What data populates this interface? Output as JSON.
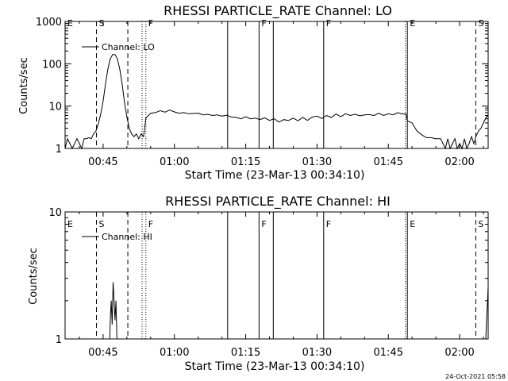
{
  "chart_data": [
    {
      "type": "line",
      "title": "RHESSI PARTICLE_RATE Channel: LO",
      "xlabel": "Start Time (23-Mar-13 00:34:10)",
      "ylabel": "Counts/sec",
      "yscale": "log",
      "xlim": [
        37.0,
        126.0
      ],
      "ylim": [
        1,
        1000
      ],
      "x_ticks": [
        {
          "v": 45,
          "label": "00:45"
        },
        {
          "v": 60,
          "label": "01:00"
        },
        {
          "v": 75,
          "label": "01:15"
        },
        {
          "v": 90,
          "label": "01:30"
        },
        {
          "v": 105,
          "label": "01:45"
        },
        {
          "v": 120,
          "label": "02:00"
        }
      ],
      "y_ticks": [
        {
          "v": 1,
          "label": "1"
        },
        {
          "v": 10,
          "label": "10"
        },
        {
          "v": 100,
          "label": "100"
        },
        {
          "v": 1000,
          "label": "1000"
        }
      ],
      "legend": {
        "label": "Channel: LO",
        "position": "top-left"
      },
      "markers": [
        {
          "x": 37.0,
          "style": "none",
          "label": "E"
        },
        {
          "x": 43.6,
          "style": "dashed",
          "label": "S"
        },
        {
          "x": 50.2,
          "style": "dashed",
          "label": ""
        },
        {
          "x": 53.2,
          "style": "dotted",
          "label": ""
        },
        {
          "x": 54.0,
          "style": "dotted",
          "label": "F"
        },
        {
          "x": 71.2,
          "style": "solid",
          "label": ""
        },
        {
          "x": 77.8,
          "style": "solid",
          "label": "F"
        },
        {
          "x": 80.8,
          "style": "solid",
          "label": ""
        },
        {
          "x": 91.4,
          "style": "solid",
          "label": "F"
        },
        {
          "x": 108.6,
          "style": "dotted",
          "label": ""
        },
        {
          "x": 109.0,
          "style": "solid",
          "label": "E"
        },
        {
          "x": 121.0,
          "style": "none",
          "label": ""
        },
        {
          "x": 123.4,
          "style": "dashed",
          "label": "S"
        },
        {
          "x": 126.0,
          "style": "dashdot",
          "label": ""
        }
      ],
      "series": [
        {
          "name": "Channel: LO",
          "points": [
            [
              37.0,
              1.0
            ],
            [
              37.5,
              1.7
            ],
            [
              38.0,
              1.3
            ],
            [
              38.5,
              1.0
            ],
            [
              39.0,
              1.3
            ],
            [
              39.5,
              1.7
            ],
            [
              40.0,
              1.3
            ],
            [
              40.5,
              1.0
            ],
            [
              41.0,
              1.7
            ],
            [
              41.5,
              1.7
            ],
            [
              42.0,
              1.8
            ],
            [
              42.5,
              1.7
            ],
            [
              43.0,
              2.2
            ],
            [
              43.5,
              2.6
            ],
            [
              44.0,
              3.8
            ],
            [
              44.5,
              6.5
            ],
            [
              45.0,
              13
            ],
            [
              45.5,
              33
            ],
            [
              46.0,
              75
            ],
            [
              46.5,
              130
            ],
            [
              47.0,
              165
            ],
            [
              47.5,
              165
            ],
            [
              48.0,
              130
            ],
            [
              48.5,
              75
            ],
            [
              49.0,
              33
            ],
            [
              49.5,
              12
            ],
            [
              50.0,
              5.5
            ],
            [
              50.5,
              3.0
            ],
            [
              51.0,
              2.2
            ],
            [
              51.5,
              1.9
            ],
            [
              52.0,
              2.2
            ],
            [
              52.5,
              1.7
            ],
            [
              53.0,
              2.2
            ],
            [
              53.5,
              1.9
            ],
            [
              54.0,
              5.2
            ],
            [
              55.0,
              6.8
            ],
            [
              56.0,
              7.0
            ],
            [
              57.0,
              7.8
            ],
            [
              58.0,
              7.2
            ],
            [
              59.0,
              8.1
            ],
            [
              60.0,
              7.3
            ],
            [
              61.0,
              6.8
            ],
            [
              62.0,
              7.0
            ],
            [
              63.0,
              6.6
            ],
            [
              64.0,
              6.7
            ],
            [
              65.0,
              6.8
            ],
            [
              66.0,
              6.2
            ],
            [
              67.0,
              6.4
            ],
            [
              68.0,
              6.0
            ],
            [
              69.0,
              6.2
            ],
            [
              70.0,
              5.8
            ],
            [
              71.0,
              6.1
            ],
            [
              72.0,
              5.5
            ],
            [
              73.0,
              5.4
            ],
            [
              74.0,
              5.0
            ],
            [
              75.0,
              5.6
            ],
            [
              76.0,
              5.0
            ],
            [
              77.0,
              5.2
            ],
            [
              78.0,
              4.8
            ],
            [
              79.0,
              5.3
            ],
            [
              80.0,
              4.6
            ],
            [
              81.0,
              5.0
            ],
            [
              82.0,
              4.2
            ],
            [
              83.0,
              4.8
            ],
            [
              84.0,
              4.6
            ],
            [
              85.0,
              5.2
            ],
            [
              86.0,
              4.5
            ],
            [
              87.0,
              5.4
            ],
            [
              88.0,
              4.6
            ],
            [
              89.0,
              5.5
            ],
            [
              90.0,
              5.8
            ],
            [
              91.0,
              5.1
            ],
            [
              92.0,
              6.0
            ],
            [
              93.0,
              5.4
            ],
            [
              94.0,
              6.5
            ],
            [
              95.0,
              5.6
            ],
            [
              96.0,
              6.6
            ],
            [
              97.0,
              6.0
            ],
            [
              98.0,
              6.4
            ],
            [
              99.0,
              5.9
            ],
            [
              100.0,
              6.2
            ],
            [
              101.0,
              6.3
            ],
            [
              102.0,
              6.0
            ],
            [
              103.0,
              6.8
            ],
            [
              104.0,
              6.0
            ],
            [
              105.0,
              6.6
            ],
            [
              106.0,
              6.2
            ],
            [
              107.0,
              7.0
            ],
            [
              108.0,
              6.5
            ],
            [
              108.7,
              6.5
            ],
            [
              109.0,
              4.5
            ],
            [
              110.0,
              4.0
            ],
            [
              111.0,
              2.6
            ],
            [
              112.0,
              2.1
            ],
            [
              113.0,
              1.8
            ],
            [
              114.0,
              1.8
            ],
            [
              115.0,
              1.7
            ],
            [
              116.0,
              1.7
            ],
            [
              117.0,
              1.0
            ],
            [
              117.5,
              1.7
            ],
            [
              118.0,
              1.0
            ],
            [
              118.5,
              1.3
            ],
            [
              119.0,
              1.7
            ],
            [
              119.5,
              1.0
            ],
            [
              120.0,
              1.3
            ],
            [
              120.5,
              1.0
            ],
            [
              121.0,
              1.7
            ],
            [
              121.5,
              1.0
            ],
            [
              122.0,
              1.3
            ],
            [
              122.5,
              1.9
            ],
            [
              123.0,
              1.3
            ],
            [
              123.5,
              2.0
            ],
            [
              124.0,
              2.6
            ],
            [
              124.5,
              3.0
            ],
            [
              125.0,
              4.0
            ],
            [
              125.5,
              5.2
            ],
            [
              126.0,
              6.2
            ]
          ]
        }
      ]
    },
    {
      "type": "line",
      "title": "RHESSI PARTICLE_RATE Channel: HI",
      "xlabel": "Start Time (23-Mar-13 00:34:10)",
      "ylabel": "Counts/sec",
      "yscale": "log",
      "xlim": [
        37.0,
        126.0
      ],
      "ylim": [
        1,
        10
      ],
      "x_ticks": [
        {
          "v": 45,
          "label": "00:45"
        },
        {
          "v": 60,
          "label": "01:00"
        },
        {
          "v": 75,
          "label": "01:15"
        },
        {
          "v": 90,
          "label": "01:30"
        },
        {
          "v": 105,
          "label": "01:45"
        },
        {
          "v": 120,
          "label": "02:00"
        }
      ],
      "y_ticks": [
        {
          "v": 1,
          "label": "1"
        },
        {
          "v": 10,
          "label": "10"
        }
      ],
      "legend": {
        "label": "Channel: HI",
        "position": "top-left"
      },
      "markers": [
        {
          "x": 37.0,
          "style": "none",
          "label": "E"
        },
        {
          "x": 43.6,
          "style": "dashed",
          "label": "S"
        },
        {
          "x": 50.2,
          "style": "dashed",
          "label": ""
        },
        {
          "x": 53.2,
          "style": "dotted",
          "label": ""
        },
        {
          "x": 54.0,
          "style": "dotted",
          "label": "F"
        },
        {
          "x": 71.2,
          "style": "solid",
          "label": ""
        },
        {
          "x": 77.8,
          "style": "solid",
          "label": "F"
        },
        {
          "x": 80.8,
          "style": "solid",
          "label": ""
        },
        {
          "x": 91.4,
          "style": "solid",
          "label": "F"
        },
        {
          "x": 108.6,
          "style": "dotted",
          "label": ""
        },
        {
          "x": 109.0,
          "style": "solid",
          "label": "E"
        },
        {
          "x": 121.0,
          "style": "none",
          "label": ""
        },
        {
          "x": 123.4,
          "style": "dashed",
          "label": "S"
        },
        {
          "x": 126.0,
          "style": "dashdot",
          "label": ""
        }
      ],
      "series": [
        {
          "name": "Channel: HI",
          "segments": [
            [
              [
                46.4,
                1.0
              ],
              [
                46.5,
                1.4
              ],
              [
                46.7,
                2.0
              ],
              [
                46.9,
                1.3
              ],
              [
                47.1,
                2.8
              ],
              [
                47.3,
                2.0
              ],
              [
                47.5,
                1.4
              ],
              [
                47.7,
                2.0
              ],
              [
                47.9,
                1.0
              ]
            ],
            [
              [
                125.5,
                1.0
              ],
              [
                125.7,
                1.5
              ],
              [
                125.9,
                2.1
              ],
              [
                126.0,
                2.6
              ]
            ]
          ]
        }
      ]
    }
  ],
  "footer": {
    "timestamp": "24-Oct-2021 05:58"
  }
}
